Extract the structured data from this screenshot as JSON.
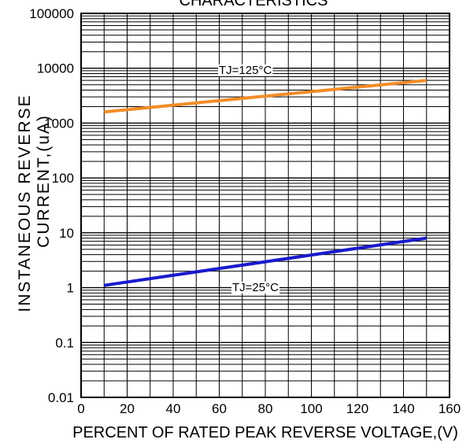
{
  "chart_data": {
    "type": "line",
    "title": "CHARACTERISTICS",
    "xlabel": "PERCENT OF RATED PEAK REVERSE VOLTAGE,(V)",
    "ylabel_line1": "INSTANEOUS REVERSE",
    "ylabel_line2": "CURRENT,(uA)",
    "yscale": "log",
    "xlim": [
      0,
      160
    ],
    "ylim": [
      0.01,
      100000
    ],
    "grid": true,
    "x_ticks": [
      "0",
      "20",
      "40",
      "60",
      "80",
      "100",
      "120",
      "140",
      "160"
    ],
    "y_ticks": [
      "0.01",
      "0.1",
      "1",
      "10",
      "100",
      "1000",
      "10000",
      "100000"
    ],
    "series": [
      {
        "name": "TJ=125°C",
        "color": "#f28c28",
        "x": [
          10,
          150
        ],
        "y": [
          1600,
          6000
        ]
      },
      {
        "name": "TJ=25°C",
        "color": "#1a1acc",
        "x": [
          10,
          150
        ],
        "y": [
          1.1,
          8
        ]
      }
    ]
  }
}
